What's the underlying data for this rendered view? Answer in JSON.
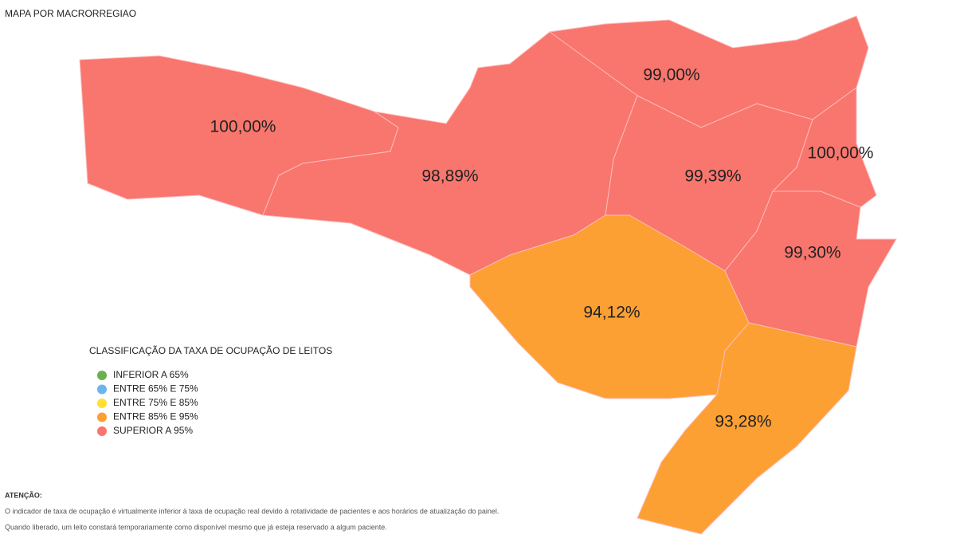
{
  "header": {
    "title": "MAPA POR MACRORREGIAO"
  },
  "regions": [
    {
      "label": "100,00%",
      "color": "#f8766d"
    },
    {
      "label": "98,89%",
      "color": "#f8766d"
    },
    {
      "label": "99,00%",
      "color": "#f8766d"
    },
    {
      "label": "99,39%",
      "color": "#f8766d"
    },
    {
      "label": "100,00%",
      "color": "#f8766d"
    },
    {
      "label": "99,30%",
      "color": "#f8766d"
    },
    {
      "label": "94,12%",
      "color": "#fda033"
    },
    {
      "label": "93,28%",
      "color": "#fda033"
    }
  ],
  "legend": {
    "title": "CLASSIFICAÇÃO DA TAXA DE OCUPAÇÃO DE LEITOS",
    "items": [
      {
        "label": "INFERIOR A 65%",
        "color": "#6ab04c"
      },
      {
        "label": "ENTRE 65% E 75%",
        "color": "#6cb4f0"
      },
      {
        "label": "ENTRE 75% E 85%",
        "color": "#ffe033"
      },
      {
        "label": "ENTRE 85% E 95%",
        "color": "#fda033"
      },
      {
        "label": "SUPERIOR A 95%",
        "color": "#f8766d"
      }
    ]
  },
  "note": {
    "title": "ATENÇÃO:",
    "lines": [
      "O indicador de taxa de ocupação é virtualmente inferior à taxa de ocupação real devido à rotatividade de pacientes e aos horários de atualização do painel.",
      "Quando liberado, um leito constará temporariamente como disponível mesmo que já esteja reservado a algum paciente."
    ]
  }
}
